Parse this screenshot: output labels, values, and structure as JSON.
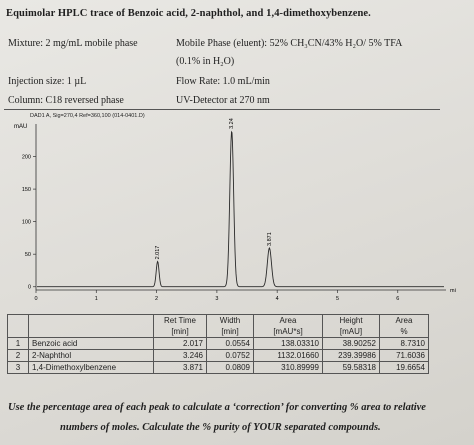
{
  "header": {
    "title": "Equimolar HPLC trace of Benzoic acid, 2-naphthol, and 1,4-dimethoxybenzene.",
    "mixture": "Mixture: 2 mg/mL mobile phase",
    "mobile_phase": "Mobile Phase (eluent): 52% CH₃CN/43% H₂O/ 5% TFA",
    "mobile_phase_2": "(0.1% in H₂O)",
    "injection_size": "Injection size: 1 µL",
    "flow_rate": "Flow Rate: 1.0 mL/min",
    "column": "Column: C18 reversed phase",
    "detector": "UV-Detector at 270 nm"
  },
  "chart_data": {
    "type": "line",
    "detector_label": "DAD1 A, Sig=270,4 Ref=360,100 (014-0401.D)",
    "ylabel": "mAU",
    "xlabel": "mi",
    "xlim": [
      0,
      6.8
    ],
    "ylim": [
      -5,
      250
    ],
    "x_ticks": [
      "0",
      "1",
      "2",
      "3",
      "4",
      "5",
      "6"
    ],
    "y_ticks": [
      "0",
      "50",
      "100",
      "150",
      "200"
    ],
    "peaks": [
      {
        "time": 2.017,
        "height": 38.90252,
        "label": "2.017"
      },
      {
        "time": 3.246,
        "height": 239.39986,
        "label": "3.246"
      },
      {
        "time": 3.871,
        "height": 59.58318,
        "label": "3.871"
      }
    ]
  },
  "table": {
    "headers": [
      {
        "line1": "Ret Time",
        "line2": "[min]"
      },
      {
        "line1": "Width",
        "line2": "[min]"
      },
      {
        "line1": "Area",
        "line2": "[mAU*s]"
      },
      {
        "line1": "Height",
        "line2": "[mAU]"
      },
      {
        "line1": "Area",
        "line2": "%"
      }
    ],
    "rows": [
      {
        "num": "1",
        "name": "Benzoic acid",
        "ret": "2.017",
        "width": "0.0554",
        "area": "138.03310",
        "height": "38.90252",
        "pct": "8.7310"
      },
      {
        "num": "2",
        "name": "2-Naphthol",
        "ret": "3.246",
        "width": "0.0752",
        "area": "1132.01660",
        "height": "239.39986",
        "pct": "71.6036"
      },
      {
        "num": "3",
        "name": "1,4-Dimethoxylbenzene",
        "ret": "3.871",
        "width": "0.0809",
        "area": "310.89999",
        "height": "59.58318",
        "pct": "19.6654"
      }
    ]
  },
  "footer": {
    "line1": "Use the percentage area of each peak to calculate a ‘correction’ for converting % area to relative",
    "line2": "numbers of moles. Calculate the % purity of YOUR separated compounds."
  }
}
